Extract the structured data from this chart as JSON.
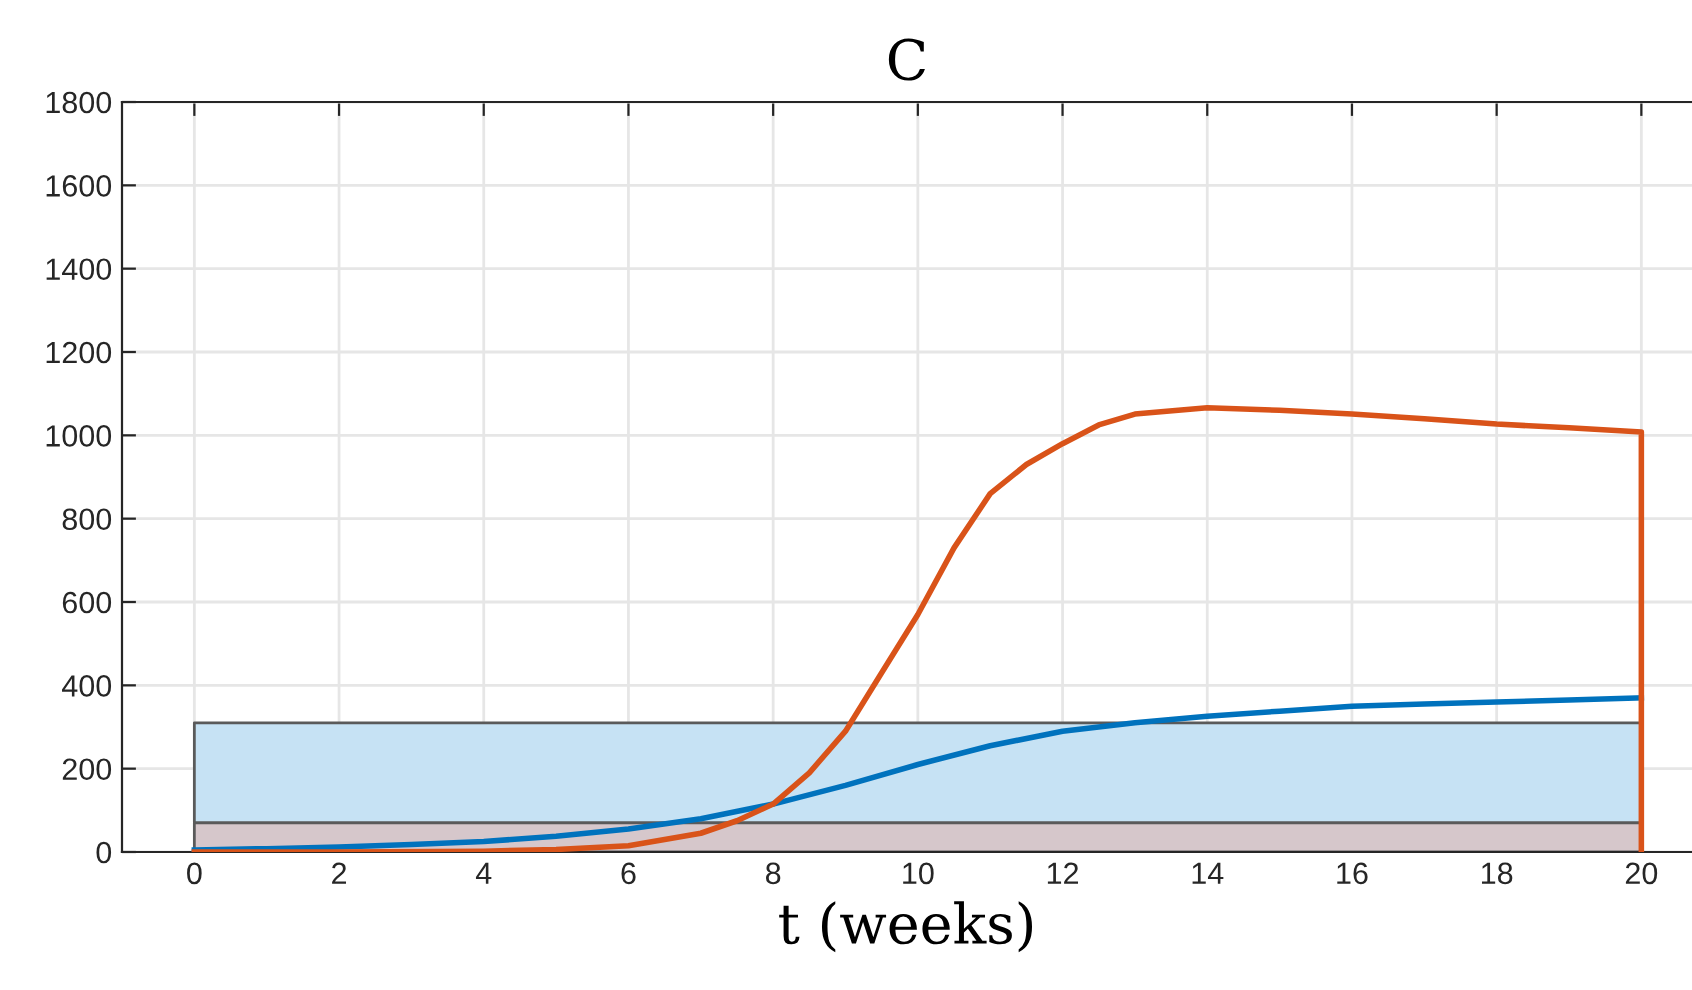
{
  "chart_data": {
    "type": "line",
    "title": "C",
    "xlabel": "t (weeks)",
    "series": [
      {
        "color": "#0072bd",
        "x": [
          0,
          1,
          2,
          3,
          4,
          5,
          6,
          7,
          8,
          9,
          10,
          11,
          12,
          13,
          14,
          15,
          16,
          17,
          18,
          19,
          20
        ],
        "values": [
          5,
          8,
          12,
          18,
          25,
          38,
          55,
          80,
          115,
          160,
          210,
          255,
          290,
          310,
          326,
          338,
          350,
          355,
          360,
          365,
          370
        ]
      },
      {
        "color": "#d95319",
        "x": [
          0,
          2,
          4,
          5,
          6,
          7,
          7.5,
          8,
          8.5,
          9,
          9.5,
          10,
          10.5,
          11,
          11.5,
          12,
          12.5,
          13,
          14,
          15,
          16,
          17,
          18,
          19,
          20,
          20
        ],
        "values": [
          0,
          0,
          2,
          6,
          15,
          45,
          75,
          115,
          190,
          290,
          430,
          570,
          730,
          860,
          930,
          980,
          1025,
          1051,
          1066,
          1060,
          1051,
          1040,
          1027,
          1018,
          1008,
          0
        ]
      }
    ],
    "bands": [
      {
        "axis": "y",
        "from": 70,
        "to": 310,
        "color": "#c6e2f4"
      },
      {
        "axis": "y",
        "from": 0,
        "to": 70,
        "color": "#d6c7cb"
      }
    ],
    "xlim": [
      -1,
      20.7
    ],
    "ylim": [
      0,
      1800
    ],
    "xticks": [
      0,
      2,
      4,
      6,
      8,
      10,
      12,
      14,
      16,
      18,
      20
    ],
    "yticks": [
      0,
      200,
      400,
      600,
      800,
      1000,
      1200,
      1400,
      1600,
      1800
    ],
    "grid": true
  }
}
